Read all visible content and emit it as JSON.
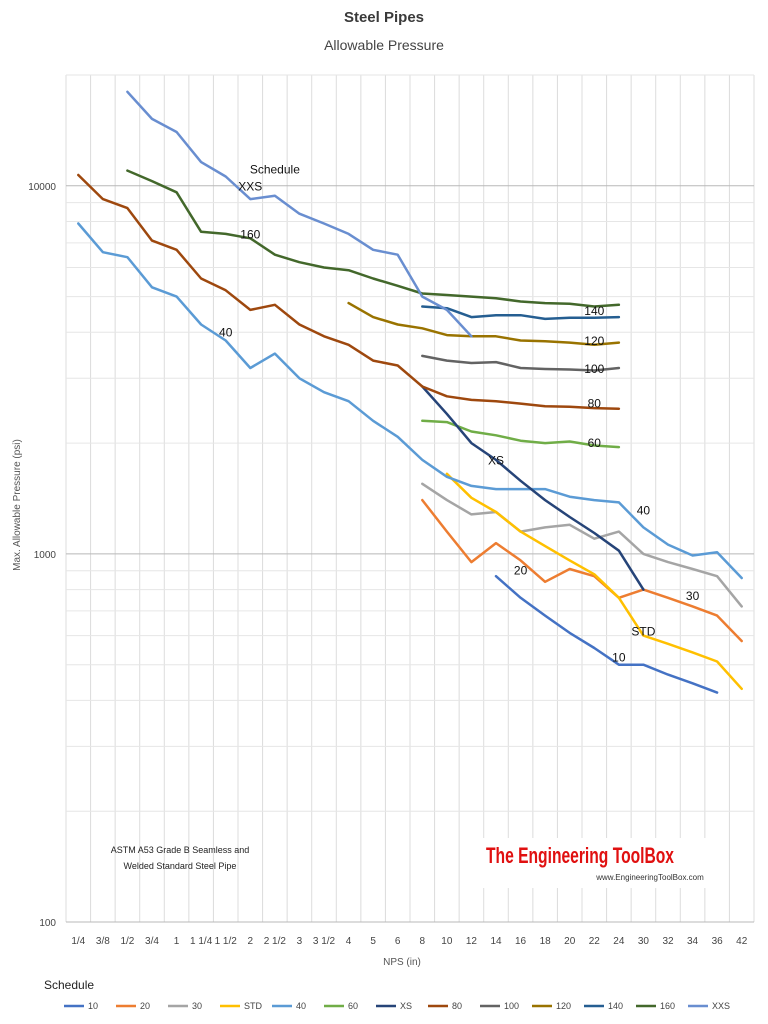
{
  "chart_data": {
    "type": "line",
    "title": "Steel Pipes",
    "subtitle": "Allowable Pressure",
    "xlabel": "NPS (in)",
    "ylabel": "Max. Allowable Pressure (psi)",
    "y_scale": "log",
    "ylim": [
      100,
      20000
    ],
    "y_ticks": [
      100,
      1000,
      10000
    ],
    "y_tick_labels": [
      "100",
      "1000",
      "10000"
    ],
    "grid": true,
    "categories": [
      "1/4",
      "3/8",
      "1/2",
      "3/4",
      "1",
      "1 1/4",
      "1 1/2",
      "2",
      "2 1/2",
      "3",
      "3 1/2",
      "4",
      "5",
      "6",
      "8",
      "10",
      "12",
      "14",
      "16",
      "18",
      "20",
      "22",
      "24",
      "30",
      "32",
      "34",
      "36",
      "42"
    ],
    "legend_title": "Schedule",
    "legend_position": "bottom",
    "series": [
      {
        "name": "10",
        "color": "#4472c4",
        "points": [
          [
            "14",
            870
          ],
          [
            "16",
            760
          ],
          [
            "18",
            680
          ],
          [
            "20",
            610
          ],
          [
            "22",
            555
          ],
          [
            "24",
            500
          ],
          [
            "30",
            500
          ],
          [
            "32",
            470
          ],
          [
            "34",
            445
          ],
          [
            "36",
            420
          ]
        ]
      },
      {
        "name": "20",
        "color": "#ed7d31",
        "points": [
          [
            "8",
            1400
          ],
          [
            "10",
            1150
          ],
          [
            "12",
            950
          ],
          [
            "14",
            1070
          ],
          [
            "16",
            960
          ],
          [
            "18",
            840
          ],
          [
            "20",
            910
          ],
          [
            "22",
            870
          ],
          [
            "24",
            760
          ],
          [
            "30",
            800
          ],
          [
            "32",
            760
          ],
          [
            "34",
            720
          ],
          [
            "36",
            680
          ],
          [
            "42",
            580
          ]
        ]
      },
      {
        "name": "30",
        "color": "#a5a5a5",
        "points": [
          [
            "8",
            1550
          ],
          [
            "10",
            1400
          ],
          [
            "12",
            1280
          ],
          [
            "14",
            1300
          ],
          [
            "16",
            1150
          ],
          [
            "18",
            1180
          ],
          [
            "20",
            1200
          ],
          [
            "22",
            1100
          ],
          [
            "24",
            1150
          ],
          [
            "30",
            1000
          ],
          [
            "32",
            950
          ],
          [
            "34",
            910
          ],
          [
            "36",
            870
          ],
          [
            "42",
            720
          ]
        ]
      },
      {
        "name": "STD",
        "color": "#ffc000",
        "points": [
          [
            "10",
            1650
          ],
          [
            "12",
            1420
          ],
          [
            "14",
            1300
          ],
          [
            "16",
            1150
          ],
          [
            "18",
            1050
          ],
          [
            "20",
            960
          ],
          [
            "22",
            880
          ],
          [
            "24",
            760
          ],
          [
            "30",
            600
          ],
          [
            "32",
            570
          ],
          [
            "34",
            540
          ],
          [
            "36",
            510
          ],
          [
            "42",
            430
          ]
        ]
      },
      {
        "name": "40",
        "color": "#5b9bd5",
        "points": [
          [
            "1/4",
            7900
          ],
          [
            "3/8",
            6600
          ],
          [
            "1/2",
            6400
          ],
          [
            "3/4",
            5300
          ],
          [
            "1",
            5000
          ],
          [
            "1 1/4",
            4200
          ],
          [
            "1 1/2",
            3800
          ],
          [
            "2",
            3200
          ],
          [
            "2 1/2",
            3500
          ],
          [
            "3",
            3000
          ],
          [
            "3 1/2",
            2750
          ],
          [
            "4",
            2600
          ],
          [
            "5",
            2300
          ],
          [
            "6",
            2080
          ],
          [
            "8",
            1800
          ],
          [
            "10",
            1620
          ],
          [
            "12",
            1530
          ],
          [
            "14",
            1500
          ],
          [
            "16",
            1500
          ],
          [
            "18",
            1500
          ],
          [
            "20",
            1430
          ],
          [
            "22",
            1400
          ],
          [
            "24",
            1380
          ],
          [
            "30",
            1180
          ],
          [
            "32",
            1060
          ],
          [
            "34",
            990
          ],
          [
            "36",
            1010
          ],
          [
            "42",
            860
          ]
        ]
      },
      {
        "name": "60",
        "color": "#70ad47",
        "points": [
          [
            "8",
            2300
          ],
          [
            "10",
            2280
          ],
          [
            "12",
            2150
          ],
          [
            "14",
            2100
          ],
          [
            "16",
            2030
          ],
          [
            "18",
            2000
          ],
          [
            "20",
            2020
          ],
          [
            "22",
            1970
          ],
          [
            "24",
            1950
          ]
        ]
      },
      {
        "name": "XS",
        "color": "#264478",
        "points": [
          [
            "8",
            2850
          ],
          [
            "10",
            2400
          ],
          [
            "12",
            2000
          ],
          [
            "14",
            1800
          ],
          [
            "16",
            1580
          ],
          [
            "18",
            1400
          ],
          [
            "20",
            1260
          ],
          [
            "22",
            1140
          ],
          [
            "24",
            1020
          ],
          [
            "30",
            800
          ]
        ]
      },
      {
        "name": "80",
        "color": "#9e480e",
        "points": [
          [
            "1/4",
            10700
          ],
          [
            "3/8",
            9200
          ],
          [
            "1/2",
            8700
          ],
          [
            "3/4",
            7100
          ],
          [
            "1",
            6700
          ],
          [
            "1 1/4",
            5600
          ],
          [
            "1 1/2",
            5200
          ],
          [
            "2",
            4600
          ],
          [
            "2 1/2",
            4750
          ],
          [
            "3",
            4200
          ],
          [
            "3 1/2",
            3900
          ],
          [
            "4",
            3700
          ],
          [
            "5",
            3350
          ],
          [
            "6",
            3250
          ],
          [
            "8",
            2850
          ],
          [
            "10",
            2680
          ],
          [
            "12",
            2620
          ],
          [
            "14",
            2600
          ],
          [
            "16",
            2560
          ],
          [
            "18",
            2520
          ],
          [
            "20",
            2510
          ],
          [
            "22",
            2490
          ],
          [
            "24",
            2480
          ]
        ]
      },
      {
        "name": "100",
        "color": "#636363",
        "points": [
          [
            "8",
            3450
          ],
          [
            "10",
            3350
          ],
          [
            "12",
            3300
          ],
          [
            "14",
            3320
          ],
          [
            "16",
            3200
          ],
          [
            "18",
            3180
          ],
          [
            "20",
            3170
          ],
          [
            "22",
            3150
          ],
          [
            "24",
            3200
          ]
        ]
      },
      {
        "name": "120",
        "color": "#997300",
        "points": [
          [
            "4",
            4800
          ],
          [
            "5",
            4400
          ],
          [
            "6",
            4200
          ],
          [
            "8",
            4100
          ],
          [
            "10",
            3930
          ],
          [
            "12",
            3900
          ],
          [
            "14",
            3900
          ],
          [
            "16",
            3800
          ],
          [
            "18",
            3780
          ],
          [
            "20",
            3750
          ],
          [
            "22",
            3700
          ],
          [
            "24",
            3750
          ]
        ]
      },
      {
        "name": "140",
        "color": "#255e91",
        "points": [
          [
            "8",
            4700
          ],
          [
            "10",
            4650
          ],
          [
            "12",
            4400
          ],
          [
            "14",
            4450
          ],
          [
            "16",
            4450
          ],
          [
            "18",
            4350
          ],
          [
            "20",
            4380
          ],
          [
            "22",
            4380
          ],
          [
            "24",
            4400
          ]
        ]
      },
      {
        "name": "160",
        "color": "#43682b",
        "points": [
          [
            "1/2",
            11000
          ],
          [
            "3/4",
            10300
          ],
          [
            "1",
            9600
          ],
          [
            "1 1/4",
            7500
          ],
          [
            "1 1/2",
            7400
          ],
          [
            "2",
            7200
          ],
          [
            "2 1/2",
            6500
          ],
          [
            "3",
            6200
          ],
          [
            "3 1/2",
            6000
          ],
          [
            "4",
            5900
          ],
          [
            "5",
            5600
          ],
          [
            "6",
            5350
          ],
          [
            "8",
            5100
          ],
          [
            "10",
            5050
          ],
          [
            "12",
            5000
          ],
          [
            "14",
            4950
          ],
          [
            "16",
            4850
          ],
          [
            "18",
            4800
          ],
          [
            "20",
            4780
          ],
          [
            "22",
            4700
          ],
          [
            "24",
            4750
          ]
        ]
      },
      {
        "name": "XXS",
        "color": "#698ed0",
        "points": [
          [
            "1/2",
            18000
          ],
          [
            "3/4",
            15200
          ],
          [
            "1",
            14000
          ],
          [
            "1 1/4",
            11600
          ],
          [
            "1 1/2",
            10600
          ],
          [
            "2",
            9200
          ],
          [
            "2 1/2",
            9400
          ],
          [
            "3",
            8400
          ],
          [
            "3 1/2",
            7900
          ],
          [
            "4",
            7400
          ],
          [
            "5",
            6700
          ],
          [
            "6",
            6500
          ],
          [
            "8",
            5000
          ],
          [
            "10",
            4600
          ],
          [
            "12",
            3900
          ]
        ]
      }
    ],
    "annotations": [
      {
        "text": "Schedule",
        "x": "2 1/2",
        "y": 10800
      },
      {
        "text": "XXS",
        "x": "2",
        "y": 9700
      },
      {
        "text": "160",
        "x": "2",
        "y": 7200
      },
      {
        "text": "40",
        "x": "1 1/2",
        "y": 3900
      },
      {
        "text": "140",
        "x": "22",
        "y": 4450
      },
      {
        "text": "120",
        "x": "22",
        "y": 3700
      },
      {
        "text": "100",
        "x": "22",
        "y": 3100
      },
      {
        "text": "80",
        "x": "22",
        "y": 2500
      },
      {
        "text": "60",
        "x": "22",
        "y": 1950
      },
      {
        "text": "XS",
        "x": "14",
        "y": 1750
      },
      {
        "text": "40",
        "x": "30",
        "y": 1280
      },
      {
        "text": "20",
        "x": "16",
        "y": 880
      },
      {
        "text": "30",
        "x": "34",
        "y": 750
      },
      {
        "text": "STD",
        "x": "30",
        "y": 600
      },
      {
        "text": "10",
        "x": "24",
        "y": 510
      }
    ],
    "note_lines": [
      "ASTM A53 Grade B Seamless and",
      "Welded Standard Steel Pipe"
    ]
  },
  "brand": {
    "name": "The Engineering ToolBox",
    "url": "www.EngineeringToolBox.com"
  }
}
